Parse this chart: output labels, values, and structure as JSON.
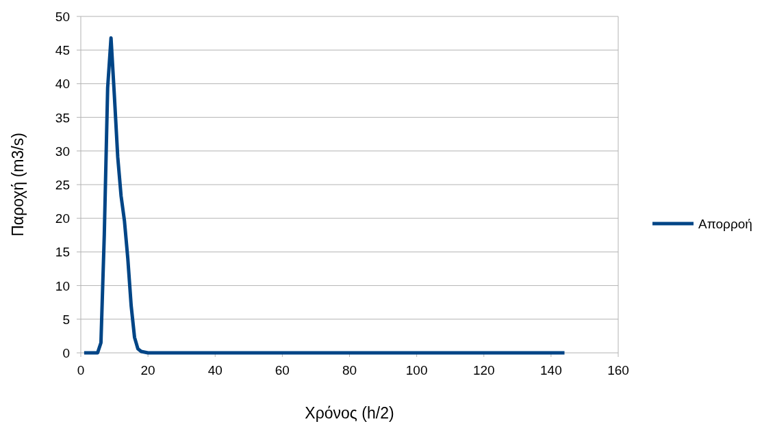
{
  "chart_data": {
    "type": "line",
    "xlabel": "Χρόνος (h/2)",
    "ylabel": "Παροχή (m3/s)",
    "x": [
      1,
      2,
      3,
      4,
      5,
      6,
      7,
      8,
      9,
      10,
      11,
      12,
      13,
      14,
      15,
      16,
      17,
      18,
      19,
      20,
      21,
      22,
      23,
      24,
      25,
      26,
      27,
      28,
      29,
      30,
      31,
      32,
      33,
      34,
      35,
      36,
      37,
      38,
      39,
      40,
      41,
      42,
      43,
      44,
      45,
      46,
      47,
      48,
      49,
      50,
      51,
      52,
      53,
      54,
      55,
      56,
      57,
      58,
      59,
      60,
      61,
      62,
      63,
      64,
      65,
      66,
      67,
      68,
      69,
      70,
      71,
      72,
      73,
      74,
      75,
      76,
      77,
      78,
      79,
      80,
      81,
      82,
      83,
      84,
      85,
      86,
      87,
      88,
      89,
      90,
      91,
      92,
      93,
      94,
      95,
      96,
      97,
      98,
      99,
      100,
      101,
      102,
      103,
      104,
      105,
      106,
      107,
      108,
      109,
      110,
      111,
      112,
      113,
      114,
      115,
      116,
      117,
      118,
      119,
      120,
      121,
      122,
      123,
      124,
      125,
      126,
      127,
      128,
      129,
      130,
      131,
      132,
      133,
      134,
      135,
      136,
      137,
      138,
      139,
      140,
      141,
      142,
      143,
      144
    ],
    "series": [
      {
        "name": "Απορροή",
        "color": "#004586",
        "values": [
          0,
          0,
          0,
          0,
          0,
          1.5,
          17.6,
          39.4,
          46.8,
          38.2,
          29.1,
          23.3,
          19.6,
          14,
          7,
          2.3,
          0.6,
          0.2,
          0.1,
          0,
          0,
          0,
          0,
          0,
          0,
          0,
          0,
          0,
          0,
          0,
          0,
          0,
          0,
          0,
          0,
          0,
          0,
          0,
          0,
          0,
          0,
          0,
          0,
          0,
          0,
          0,
          0,
          0,
          0,
          0,
          0,
          0,
          0,
          0,
          0,
          0,
          0,
          0,
          0,
          0,
          0,
          0,
          0,
          0,
          0,
          0,
          0,
          0,
          0,
          0,
          0,
          0,
          0,
          0,
          0,
          0,
          0,
          0,
          0,
          0,
          0,
          0,
          0,
          0,
          0,
          0,
          0,
          0,
          0,
          0,
          0,
          0,
          0,
          0,
          0,
          0,
          0,
          0,
          0,
          0,
          0,
          0,
          0,
          0,
          0,
          0,
          0,
          0,
          0,
          0,
          0,
          0,
          0,
          0,
          0,
          0,
          0,
          0,
          0,
          0,
          0,
          0,
          0,
          0,
          0,
          0,
          0,
          0,
          0,
          0,
          0,
          0,
          0,
          0,
          0,
          0,
          0,
          0,
          0,
          0,
          0,
          0,
          0,
          0
        ]
      }
    ],
    "xlim": [
      0,
      160
    ],
    "xticks": [
      0,
      20,
      40,
      60,
      80,
      100,
      120,
      140,
      160
    ],
    "ylim": [
      0,
      50
    ],
    "yticks": [
      0,
      5,
      10,
      15,
      20,
      25,
      30,
      35,
      40,
      45,
      50
    ],
    "grid": "y",
    "legend": "right",
    "line_style": "solid"
  }
}
